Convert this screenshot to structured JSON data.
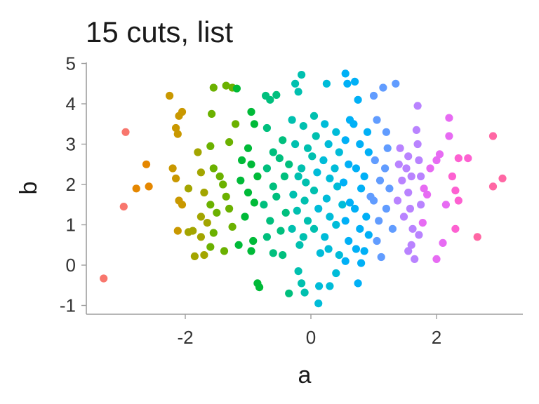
{
  "chart_data": {
    "type": "scatter",
    "title": "15 cuts, list",
    "xlabel": "a",
    "ylabel": "b",
    "xlim": [
      -3.5,
      3.5
    ],
    "ylim": [
      -1.25,
      5.1
    ],
    "x_ticks": [
      -2,
      0,
      2
    ],
    "x_tick_labels": [
      "-2",
      "0",
      "2"
    ],
    "y_ticks": [
      -1,
      0,
      1,
      2,
      3,
      4,
      5
    ],
    "y_tick_labels": [
      "-1",
      "0",
      "1",
      "2",
      "3",
      "4",
      "5"
    ],
    "grid": false,
    "legend": "none",
    "color_encoding": "points colored by 15 equal-width cuts of a (hue gradient red to magenta)",
    "palette": [
      "#F8766D",
      "#E58700",
      "#C99800",
      "#A3A500",
      "#6BB100",
      "#00BA38",
      "#00BF7D",
      "#00C0AF",
      "#00BCD8",
      "#00B0F6",
      "#619CFF",
      "#B983FF",
      "#E76BF3",
      "#FD61D1",
      "#FF67A4"
    ],
    "cut_range": [
      -3.3,
      3.05
    ],
    "series": [
      {
        "points": [
          [
            -3.3,
            -0.33
          ],
          [
            -2.95,
            3.3
          ],
          [
            -2.98,
            1.45
          ],
          [
            -2.78,
            1.9
          ],
          [
            -2.62,
            2.5
          ],
          [
            -2.58,
            1.95
          ],
          [
            -2.25,
            4.2
          ],
          [
            -2.15,
            3.4
          ],
          [
            -2.1,
            3.7
          ],
          [
            -2.05,
            3.8
          ],
          [
            -2.12,
            3.25
          ],
          [
            -2.2,
            2.4
          ],
          [
            -2.15,
            2.15
          ],
          [
            -2.1,
            1.6
          ],
          [
            -2.05,
            1.5
          ],
          [
            -2.12,
            0.85
          ],
          [
            -1.95,
            0.82
          ],
          [
            -1.88,
            0.85
          ],
          [
            -1.85,
            0.22
          ],
          [
            -1.7,
            0.25
          ],
          [
            -1.6,
            0.45
          ],
          [
            -1.55,
            4.4
          ],
          [
            -1.58,
            3.75
          ],
          [
            -1.6,
            2.95
          ],
          [
            -1.55,
            2.4
          ],
          [
            -1.8,
            2.8
          ],
          [
            -1.75,
            2.3
          ],
          [
            -1.95,
            1.9
          ],
          [
            -1.7,
            1.8
          ],
          [
            -1.6,
            1.5
          ],
          [
            -1.75,
            1.2
          ],
          [
            -1.65,
            1.05
          ],
          [
            -1.5,
            1.3
          ],
          [
            -1.55,
            0.8
          ],
          [
            -1.75,
            0.7
          ],
          [
            -1.35,
            4.45
          ],
          [
            -1.25,
            4.4
          ],
          [
            -1.18,
            4.38
          ],
          [
            -1.2,
            3.5
          ],
          [
            -1.3,
            3.05
          ],
          [
            -1.45,
            2.2
          ],
          [
            -1.4,
            2.0
          ],
          [
            -1.35,
            1.7
          ],
          [
            -1.3,
            1.4
          ],
          [
            -1.25,
            0.95
          ],
          [
            -1.38,
            0.35
          ],
          [
            -1.15,
            0.5
          ],
          [
            -1.1,
            2.6
          ],
          [
            -1.12,
            2.1
          ],
          [
            -0.95,
            3.8
          ],
          [
            -0.9,
            3.5
          ],
          [
            -1.0,
            2.9
          ],
          [
            -0.95,
            2.5
          ],
          [
            -0.85,
            2.2
          ],
          [
            -1.0,
            1.8
          ],
          [
            -0.9,
            1.55
          ],
          [
            -1.05,
            1.2
          ],
          [
            -0.92,
            0.6
          ],
          [
            -0.95,
            0.35
          ],
          [
            -0.85,
            -0.45
          ],
          [
            -0.82,
            -0.55
          ],
          [
            -0.72,
            4.2
          ],
          [
            -0.65,
            4.1
          ],
          [
            -0.7,
            3.4
          ],
          [
            -0.6,
            2.8
          ],
          [
            -0.7,
            2.4
          ],
          [
            -0.6,
            1.95
          ],
          [
            -0.75,
            1.5
          ],
          [
            -0.65,
            1.1
          ],
          [
            -0.7,
            0.7
          ],
          [
            -0.6,
            0.3
          ],
          [
            -0.55,
            4.22
          ],
          [
            -0.45,
            3.1
          ],
          [
            -0.5,
            2.65
          ],
          [
            -0.42,
            2.2
          ],
          [
            -0.55,
            1.7
          ],
          [
            -0.4,
            1.3
          ],
          [
            -0.48,
            0.85
          ],
          [
            -0.45,
            0.25
          ],
          [
            -0.35,
            -0.7
          ],
          [
            -0.25,
            4.5
          ],
          [
            -0.2,
            4.3
          ],
          [
            -0.3,
            3.6
          ],
          [
            -0.25,
            3.0
          ],
          [
            -0.35,
            2.5
          ],
          [
            -0.2,
            2.2
          ],
          [
            -0.28,
            1.75
          ],
          [
            -0.22,
            1.35
          ],
          [
            -0.3,
            0.9
          ],
          [
            -0.18,
            0.5
          ],
          [
            -0.2,
            -0.15
          ],
          [
            -0.15,
            4.72
          ],
          [
            -0.12,
            3.45
          ],
          [
            -0.05,
            2.9
          ],
          [
            -0.15,
            2.4
          ],
          [
            -0.08,
            2.05
          ],
          [
            -0.1,
            1.6
          ],
          [
            -0.05,
            1.1
          ],
          [
            -0.12,
            0.7
          ],
          [
            -0.15,
            -0.45
          ],
          [
            -0.1,
            -0.68
          ],
          [
            0.05,
            3.7
          ],
          [
            0.08,
            3.2
          ],
          [
            0.02,
            2.7
          ],
          [
            0.1,
            2.3
          ],
          [
            0.05,
            1.85
          ],
          [
            0.12,
            1.4
          ],
          [
            0.05,
            0.9
          ],
          [
            0.15,
            0.3
          ],
          [
            0.13,
            -0.52
          ],
          [
            0.12,
            -0.95
          ],
          [
            0.25,
            4.5
          ],
          [
            0.22,
            3.5
          ],
          [
            0.28,
            3.0
          ],
          [
            0.2,
            2.6
          ],
          [
            0.3,
            2.15
          ],
          [
            0.25,
            1.65
          ],
          [
            0.3,
            1.2
          ],
          [
            0.22,
            0.7
          ],
          [
            0.28,
            0.4
          ],
          [
            0.3,
            -0.52
          ],
          [
            0.4,
            3.3
          ],
          [
            0.45,
            2.8
          ],
          [
            0.38,
            2.4
          ],
          [
            0.42,
            1.95
          ],
          [
            0.5,
            1.5
          ],
          [
            0.4,
            1.0
          ],
          [
            0.45,
            0.25
          ],
          [
            0.4,
            -0.2
          ],
          [
            0.55,
            4.75
          ],
          [
            0.58,
            4.5
          ],
          [
            0.62,
            3.6
          ],
          [
            0.55,
            3.1
          ],
          [
            0.6,
            2.5
          ],
          [
            0.52,
            2.05
          ],
          [
            0.62,
            1.55
          ],
          [
            0.55,
            1.1
          ],
          [
            0.6,
            0.6
          ],
          [
            0.55,
            0.1
          ],
          [
            0.7,
            4.55
          ],
          [
            0.75,
            4.1
          ],
          [
            0.68,
            3.5
          ],
          [
            0.78,
            3.0
          ],
          [
            0.72,
            2.4
          ],
          [
            0.8,
            1.9
          ],
          [
            0.7,
            1.4
          ],
          [
            0.78,
            0.9
          ],
          [
            0.72,
            0.4
          ],
          [
            0.8,
            0.05
          ],
          [
            0.75,
            -0.45
          ],
          [
            0.9,
            3.3
          ],
          [
            0.92,
            2.8
          ],
          [
            0.85,
            2.2
          ],
          [
            0.95,
            1.7
          ],
          [
            0.88,
            1.2
          ],
          [
            0.92,
            0.75
          ],
          [
            0.85,
            0.35
          ],
          [
            1.0,
            4.2
          ],
          [
            1.05,
            3.6
          ],
          [
            1.02,
            2.6
          ],
          [
            1.1,
            2.1
          ],
          [
            1.0,
            1.6
          ],
          [
            1.08,
            1.1
          ],
          [
            1.05,
            0.6
          ],
          [
            1.12,
            0.2
          ],
          [
            1.15,
            4.4
          ],
          [
            1.2,
            3.3
          ],
          [
            1.22,
            2.9
          ],
          [
            1.18,
            2.4
          ],
          [
            1.25,
            1.9
          ],
          [
            1.2,
            1.4
          ],
          [
            1.3,
            0.9
          ],
          [
            1.35,
            4.5
          ],
          [
            1.42,
            2.9
          ],
          [
            1.4,
            2.5
          ],
          [
            1.45,
            2.1
          ],
          [
            1.38,
            1.6
          ],
          [
            1.48,
            1.2
          ],
          [
            1.55,
            2.7
          ],
          [
            1.52,
            2.4
          ],
          [
            1.6,
            2.2
          ],
          [
            1.55,
            1.8
          ],
          [
            1.58,
            1.4
          ],
          [
            1.62,
            0.9
          ],
          [
            1.6,
            0.5
          ],
          [
            1.55,
            0.35
          ],
          [
            1.65,
            0.15
          ],
          [
            1.7,
            3.95
          ],
          [
            1.68,
            3.35
          ],
          [
            1.7,
            3.0
          ],
          [
            1.72,
            2.6
          ],
          [
            1.75,
            2.2
          ],
          [
            1.8,
            1.9
          ],
          [
            1.75,
            1.5
          ],
          [
            1.78,
            1.05
          ],
          [
            1.72,
            0.75
          ],
          [
            1.9,
            2.4
          ],
          [
            1.85,
            1.75
          ],
          [
            2.0,
            2.6
          ],
          [
            2.05,
            2.75
          ],
          [
            2.15,
            1.5
          ],
          [
            2.0,
            0.15
          ],
          [
            2.1,
            0.55
          ],
          [
            2.2,
            3.65
          ],
          [
            2.2,
            3.2
          ],
          [
            2.25,
            2.2
          ],
          [
            2.3,
            1.85
          ],
          [
            2.35,
            1.6
          ],
          [
            2.35,
            2.65
          ],
          [
            2.5,
            2.65
          ],
          [
            2.3,
            0.9
          ],
          [
            2.65,
            0.7
          ],
          [
            2.9,
            3.2
          ],
          [
            2.9,
            1.95
          ],
          [
            3.05,
            2.15
          ]
        ]
      }
    ]
  }
}
